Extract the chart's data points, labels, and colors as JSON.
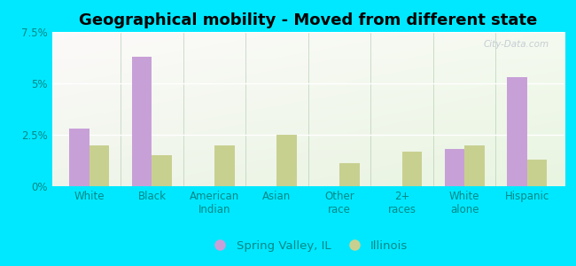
{
  "title": "Geographical mobility - Moved from different state",
  "categories": [
    "White",
    "Black",
    "American\nIndian",
    "Asian",
    "Other\nrace",
    "2+\nraces",
    "White\nalone",
    "Hispanic"
  ],
  "spring_valley": [
    2.8,
    6.3,
    0.0,
    0.0,
    0.0,
    0.0,
    1.8,
    5.3
  ],
  "illinois": [
    2.0,
    1.5,
    2.0,
    2.5,
    1.1,
    1.7,
    2.0,
    1.3
  ],
  "sv_color": "#c8a0d8",
  "il_color": "#c8d090",
  "outer_bg": "#00e8ff",
  "plot_bg_tl": "#e8f5ee",
  "plot_bg_br": "#ddeedd",
  "ylim": [
    0,
    7.5
  ],
  "yticks": [
    0,
    2.5,
    5.0,
    7.5
  ],
  "ytick_labels": [
    "0%",
    "2.5%",
    "5%",
    "7.5%"
  ],
  "bar_width": 0.32,
  "legend_sv": "Spring Valley, IL",
  "legend_il": "Illinois",
  "title_fontsize": 13,
  "tick_fontsize": 8.5,
  "legend_fontsize": 9.5,
  "tick_color": "#008888",
  "grid_color": "#ffffff",
  "separator_color": "#b0c8b0",
  "watermark_text": "City-Data.com",
  "watermark_color": "#c0c8d0"
}
